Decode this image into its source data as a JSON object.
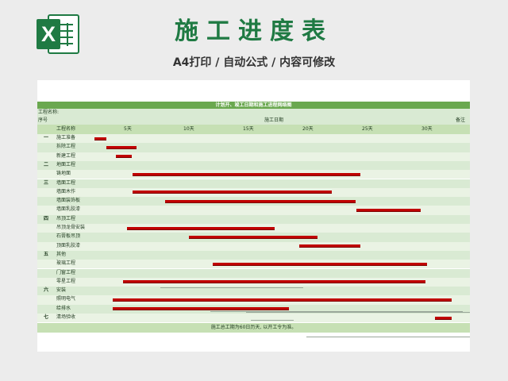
{
  "header": {
    "logo_letter": "X",
    "title": "施工进度表",
    "subtitle": "A4打印 / 自动公式 / 内容可修改"
  },
  "sheet": {
    "caption": "计划开、竣工日期和施工进程网络图",
    "project_label": "工程名称:",
    "col_seq": "序号",
    "col_date": "施工日期",
    "col_note": "备注",
    "col_item": "工程名称",
    "ticks": [
      "5天",
      "10天",
      "15天",
      "20天",
      "25天",
      "30天"
    ],
    "footer": "施工总工期为60日历天, 以开工令为准。",
    "rows": [
      {
        "seq": "一",
        "name": "施工准备",
        "bar": [
          0.0,
          1.0
        ]
      },
      {
        "seq": "",
        "name": "拆除工程",
        "bar": [
          1.0,
          3.5
        ]
      },
      {
        "seq": "",
        "name": "新建工程",
        "bar": [
          1.8,
          3.1
        ]
      },
      {
        "seq": "二",
        "name": "地面工程",
        "bar": null
      },
      {
        "seq": "",
        "name": "铸地面",
        "bar": [
          3.2,
          22.3
        ]
      },
      {
        "seq": "三",
        "name": "墙面工程",
        "bar": null
      },
      {
        "seq": "",
        "name": "墙面木作",
        "bar": [
          3.2,
          19.9
        ]
      },
      {
        "seq": "",
        "name": "墙面装饰板",
        "bar": [
          5.9,
          21.9
        ]
      },
      {
        "seq": "",
        "name": "墙面乳胶漆",
        "bar": [
          22.0,
          27.4
        ]
      },
      {
        "seq": "四",
        "name": "吊顶工程",
        "bar": null
      },
      {
        "seq": "",
        "name": "吊顶龙骨安装",
        "bar": [
          2.7,
          15.1
        ]
      },
      {
        "seq": "",
        "name": "石膏板吊顶",
        "bar": [
          7.9,
          18.7
        ]
      },
      {
        "seq": "",
        "name": "顶面乳胶漆",
        "bar": [
          17.2,
          22.3
        ]
      },
      {
        "seq": "五",
        "name": "其他",
        "bar": null
      },
      {
        "seq": "",
        "name": "玻璃工程",
        "bar": [
          9.9,
          27.9
        ]
      },
      {
        "seq": "",
        "name": "门窗工程",
        "bar": null
      },
      {
        "seq": "",
        "name": "零星工程",
        "bar": [
          2.4,
          27.8
        ]
      },
      {
        "seq": "六",
        "name": "安装",
        "bar": null
      },
      {
        "seq": "",
        "name": "照明电气",
        "bar": [
          1.5,
          30.0
        ]
      },
      {
        "seq": "",
        "name": "给排水",
        "bar": [
          1.5,
          16.3
        ]
      },
      {
        "seq": "七",
        "name": "清场验收",
        "bar": [
          28.6,
          30.0
        ]
      }
    ]
  },
  "colors": {
    "brand_green": "#1f7a43",
    "band_green": "#6aa84f",
    "row_light": "#d9ead3",
    "bar_red": "#c00000"
  }
}
